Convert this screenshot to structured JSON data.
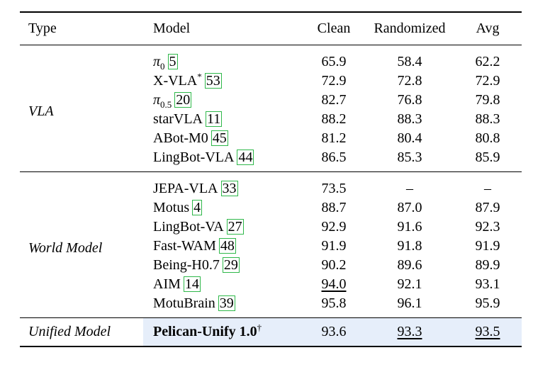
{
  "header": {
    "type": "Type",
    "model": "Model",
    "clean": "Clean",
    "randomized": "Randomized",
    "avg": "Avg"
  },
  "groups": [
    {
      "type": "VLA",
      "rows": [
        {
          "model": "π",
          "sub": "0",
          "sup": "",
          "cite": "5",
          "clean": "65.9",
          "randomized": "58.4",
          "avg": "62.2"
        },
        {
          "model": "X-VLA",
          "sub": "",
          "sup": "*",
          "cite": "53",
          "clean": "72.9",
          "randomized": "72.8",
          "avg": "72.9"
        },
        {
          "model": "π",
          "sub": "0.5",
          "sup": "",
          "cite": "20",
          "clean": "82.7",
          "randomized": "76.8",
          "avg": "79.8"
        },
        {
          "model": "starVLA",
          "sub": "",
          "sup": "",
          "cite": "11",
          "clean": "88.2",
          "randomized": "88.3",
          "avg": "88.3"
        },
        {
          "model": "ABot-M0",
          "sub": "",
          "sup": "",
          "cite": "45",
          "clean": "81.2",
          "randomized": "80.4",
          "avg": "80.8"
        },
        {
          "model": "LingBot-VLA",
          "sub": "",
          "sup": "",
          "cite": "44",
          "clean": "86.5",
          "randomized": "85.3",
          "avg": "85.9"
        }
      ]
    },
    {
      "type": "World Model",
      "rows": [
        {
          "model": "JEPA-VLA",
          "cite": "33",
          "clean": "73.5",
          "randomized": "–",
          "avg": "–"
        },
        {
          "model": "Motus",
          "cite": "4",
          "clean": "88.7",
          "randomized": "87.0",
          "avg": "87.9"
        },
        {
          "model": "LingBot-VA",
          "cite": "27",
          "clean": "92.9",
          "randomized": "91.6",
          "avg": "92.3"
        },
        {
          "model": "Fast-WAM",
          "cite": "48",
          "clean": "91.9",
          "randomized": "91.8",
          "avg": "91.9"
        },
        {
          "model": "Being-H0.7",
          "cite": "29",
          "clean": "90.2",
          "randomized": "89.6",
          "avg": "89.9"
        },
        {
          "model": "AIM",
          "cite": "14",
          "clean": "94.0",
          "randomized": "92.1",
          "avg": "93.1"
        },
        {
          "model": "MotuBrain",
          "cite": "39",
          "clean": "95.8",
          "randomized": "96.1",
          "avg": "95.9"
        }
      ]
    },
    {
      "type": "Unified Model",
      "rows": [
        {
          "model": "Pelican-Unify 1.0",
          "sup": "†",
          "clean": "93.6",
          "randomized": "93.3",
          "avg": "93.5"
        }
      ]
    }
  ]
}
